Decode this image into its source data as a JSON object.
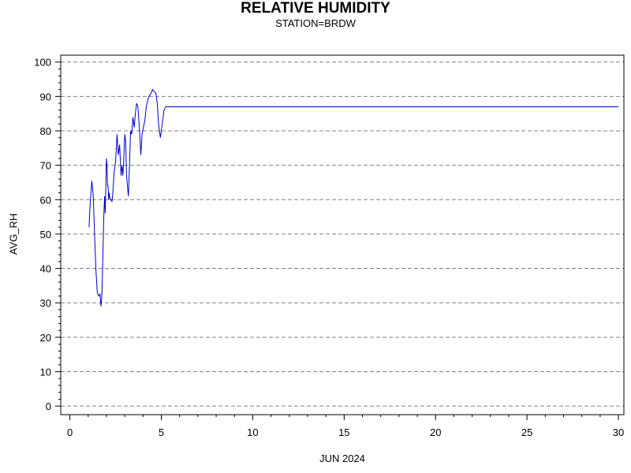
{
  "chart_data": {
    "type": "line",
    "title": "RELATIVE HUMIDITY",
    "subtitle": "STATION=BRDW",
    "xlabel": "JUN 2024",
    "ylabel": "AVG_RH",
    "xlim": [
      -0.5,
      30.3
    ],
    "ylim": [
      -2.5,
      102
    ],
    "x_ticks": [
      0,
      5,
      10,
      15,
      20,
      25,
      30
    ],
    "y_ticks": [
      0,
      10,
      20,
      30,
      40,
      50,
      60,
      70,
      80,
      90,
      100
    ],
    "grid": "horizontal-dashed",
    "colors": {
      "line": "#0000cc",
      "grid": "#808080",
      "axis": "#000000"
    },
    "series": [
      {
        "x": [
          1.05,
          1.1,
          1.2,
          1.28,
          1.35,
          1.42,
          1.5,
          1.58,
          1.65,
          1.7,
          1.75,
          1.78,
          1.82,
          1.86,
          1.9,
          1.93,
          1.95,
          1.97,
          2.0,
          2.03,
          2.06,
          2.09,
          2.12,
          2.15,
          2.2,
          2.25,
          2.3,
          2.35,
          2.42,
          2.5,
          2.58,
          2.65,
          2.72,
          2.8,
          2.85,
          2.9,
          2.95,
          3.0,
          3.05,
          3.1,
          3.15,
          3.2,
          3.26,
          3.32,
          3.38,
          3.45,
          3.52,
          3.58,
          3.65,
          3.72,
          3.8,
          3.88,
          3.95,
          4.02,
          4.1,
          4.18,
          4.26,
          4.32,
          4.38,
          4.45,
          4.52,
          4.6,
          4.7,
          4.78,
          4.85,
          4.95,
          5.05,
          5.15,
          5.25,
          5.32,
          5.38,
          5.42,
          5.46,
          5.5,
          5.55,
          5.6,
          5.65,
          5.7,
          6.0,
          8.0,
          10.0,
          15.0,
          20.0,
          25.0,
          30.0
        ],
        "values": [
          52,
          58,
          65.5,
          61,
          50,
          40,
          33,
          32,
          32.5,
          29,
          32,
          38,
          47,
          56,
          61,
          56,
          60,
          65,
          72,
          70,
          64,
          64,
          60,
          62,
          60,
          60,
          59.5,
          62,
          68,
          71,
          79,
          73,
          76,
          67,
          70,
          67,
          72,
          79,
          77,
          67,
          64,
          61,
          70,
          80,
          79,
          84,
          81,
          85,
          88,
          87,
          81,
          73,
          79,
          81,
          83,
          87,
          89,
          90,
          90.5,
          91,
          92,
          91.5,
          91,
          88,
          82,
          78,
          82,
          86,
          87,
          87,
          87,
          87,
          87,
          87,
          87,
          87,
          87,
          87,
          87,
          87,
          87,
          87,
          87,
          87,
          87
        ]
      }
    ]
  }
}
